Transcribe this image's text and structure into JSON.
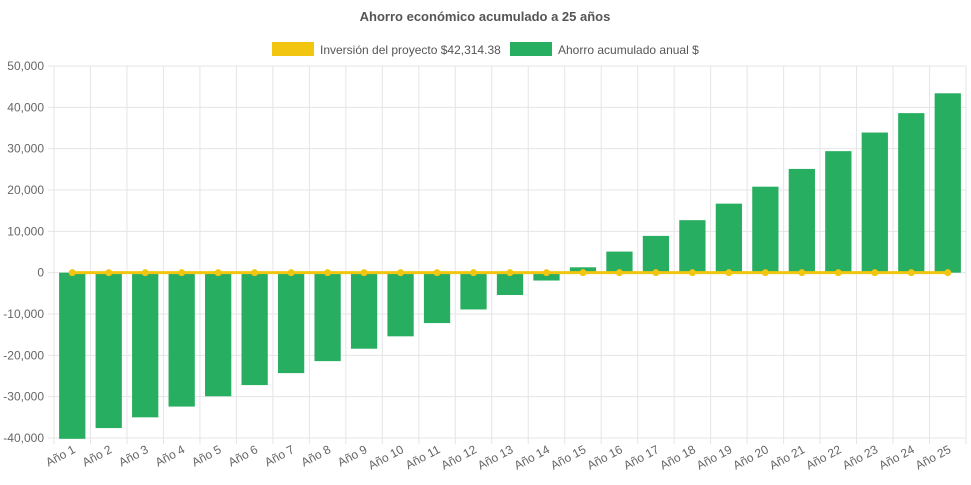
{
  "chart_data": {
    "type": "bar",
    "title": "Ahorro económico acumulado a 25 años",
    "categories": [
      "Año 1",
      "Año 2",
      "Año 3",
      "Año 4",
      "Año 5",
      "Año 6",
      "Año 7",
      "Año 8",
      "Año 9",
      "Año 10",
      "Año 11",
      "Año 12",
      "Año 13",
      "Año 14",
      "Año 15",
      "Año 16",
      "Año 17",
      "Año 18",
      "Año 19",
      "Año 20",
      "Año 21",
      "Año 22",
      "Año 23",
      "Año 24",
      "Año 25"
    ],
    "series": [
      {
        "name": "Inversión del proyecto $42,314.38",
        "kind": "line",
        "color": "#f2c511",
        "values": [
          0,
          0,
          0,
          0,
          0,
          0,
          0,
          0,
          0,
          0,
          0,
          0,
          0,
          0,
          0,
          0,
          0,
          0,
          0,
          0,
          0,
          0,
          0,
          0,
          0
        ]
      },
      {
        "name": "Ahorro acumulado anual $",
        "kind": "bar",
        "color": "#27ae60",
        "values": [
          -40200,
          -37600,
          -35000,
          -32400,
          -29900,
          -27200,
          -24300,
          -21400,
          -18400,
          -15400,
          -12200,
          -8900,
          -5400,
          -1900,
          1300,
          5100,
          8900,
          12700,
          16700,
          20800,
          25100,
          29400,
          33900,
          38600,
          43400
        ]
      }
    ],
    "ylim": [
      -40000,
      50000
    ],
    "yticks": [
      50000,
      40000,
      30000,
      20000,
      10000,
      0,
      -10000,
      -20000,
      -30000,
      -40000
    ],
    "ytick_labels": [
      "50,000",
      "40,000",
      "30,000",
      "20,000",
      "10,000",
      "0",
      "-10,000",
      "-20,000",
      "-30,000",
      "-40,000"
    ],
    "xlabel": "",
    "ylabel": "",
    "grid": true,
    "legend_position": "top"
  }
}
